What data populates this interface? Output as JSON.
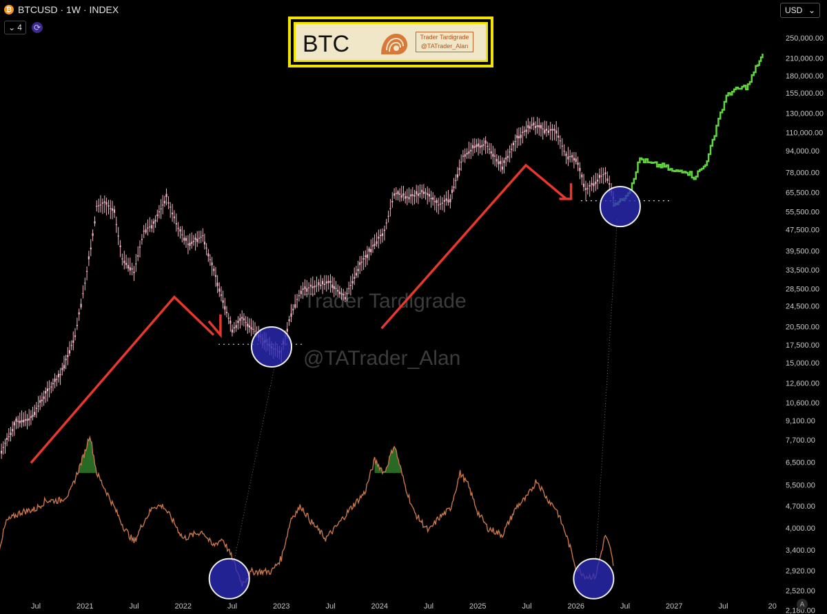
{
  "header": {
    "symbol_icon": "bitcoin-icon",
    "symbol_title": "BTCUSD · 1W · INDEX",
    "indicator_count": "4",
    "sync_icon": "sync-icon"
  },
  "currency_selector": {
    "label": "USD",
    "icon": "chevron-down-icon"
  },
  "logo": {
    "title": "BTC",
    "tag_line1": "Trader Tardigrade",
    "tag_line2": "@TATrader_Alan"
  },
  "watermark": {
    "line1": "Trader Tardigrade",
    "line2": "@TATrader_Alan"
  },
  "auto_scale_label": "A",
  "chart_data": {
    "type": "line",
    "x_ticks": [
      {
        "t": 2020.5,
        "label": "Jul"
      },
      {
        "t": 2021,
        "label": "2021"
      },
      {
        "t": 2021.5,
        "label": "Jul"
      },
      {
        "t": 2022,
        "label": "2022"
      },
      {
        "t": 2022.5,
        "label": "Jul"
      },
      {
        "t": 2023,
        "label": "2023"
      },
      {
        "t": 2023.5,
        "label": "Jul"
      },
      {
        "t": 2024,
        "label": "2024"
      },
      {
        "t": 2024.5,
        "label": "Jul"
      },
      {
        "t": 2025,
        "label": "2025"
      },
      {
        "t": 2025.5,
        "label": "Jul"
      },
      {
        "t": 2026,
        "label": "2026"
      },
      {
        "t": 2026.5,
        "label": "Jul"
      },
      {
        "t": 2027,
        "label": "2027"
      },
      {
        "t": 2027.5,
        "label": "Jul"
      },
      {
        "t": 2028,
        "label": "20"
      }
    ],
    "y_scale": "log",
    "y_ticks": [
      250000,
      210000,
      180000,
      155000,
      130000,
      110000,
      94000,
      78000,
      65500,
      55500,
      47500,
      39500,
      33500,
      28500,
      24500,
      20500,
      17500,
      15000,
      12600,
      10600,
      9100,
      7700,
      6500,
      5500,
      4700,
      4000,
      3400,
      2920,
      2520,
      2180
    ],
    "y_tick_labels": [
      "250,000.00",
      "210,000.00",
      "180,000.00",
      "155,000.00",
      "130,000.00",
      "110,000.00",
      "94,000.00",
      "78,000.00",
      "65,500.00",
      "55,500.00",
      "47,500.00",
      "39,500.00",
      "33,500.00",
      "28,500.00",
      "24,500.00",
      "20,500.00",
      "17,500.00",
      "15,000.00",
      "12,600.00",
      "10,600.00",
      "9,100.00",
      "7,700.00",
      "6,500.00",
      "5,500.00",
      "4,700.00",
      "4,000.00",
      "3,400.00",
      "2,920.00",
      "2,520.00",
      "2,180.00"
    ],
    "series": [
      {
        "kind": "price",
        "color": "#f3b6c6",
        "points": [
          [
            2020.15,
            7000
          ],
          [
            2020.3,
            9000
          ],
          [
            2020.45,
            9300
          ],
          [
            2020.6,
            11500
          ],
          [
            2020.75,
            13500
          ],
          [
            2020.9,
            19000
          ],
          [
            2021.0,
            30000
          ],
          [
            2021.08,
            45000
          ],
          [
            2021.12,
            58000
          ],
          [
            2021.2,
            60000
          ],
          [
            2021.3,
            55000
          ],
          [
            2021.38,
            37000
          ],
          [
            2021.5,
            33000
          ],
          [
            2021.6,
            47000
          ],
          [
            2021.7,
            50000
          ],
          [
            2021.83,
            63000
          ],
          [
            2021.95,
            48000
          ],
          [
            2022.05,
            42000
          ],
          [
            2022.2,
            45000
          ],
          [
            2022.35,
            30000
          ],
          [
            2022.5,
            20000
          ],
          [
            2022.6,
            22000
          ],
          [
            2022.75,
            19500
          ],
          [
            2022.9,
            17000
          ],
          [
            2023.0,
            16500
          ],
          [
            2023.1,
            23000
          ],
          [
            2023.2,
            28000
          ],
          [
            2023.3,
            29000
          ],
          [
            2023.5,
            30000
          ],
          [
            2023.65,
            26500
          ],
          [
            2023.8,
            35000
          ],
          [
            2023.95,
            42000
          ],
          [
            2024.05,
            47000
          ],
          [
            2024.15,
            65000
          ],
          [
            2024.3,
            63000
          ],
          [
            2024.45,
            66000
          ],
          [
            2024.6,
            59000
          ],
          [
            2024.72,
            62000
          ],
          [
            2024.85,
            90000
          ],
          [
            2024.95,
            96000
          ],
          [
            2025.08,
            100000
          ],
          [
            2025.25,
            82000
          ],
          [
            2025.4,
            105000
          ],
          [
            2025.55,
            118000
          ],
          [
            2025.7,
            112000
          ],
          [
            2025.8,
            112000
          ],
          [
            2025.9,
            90000
          ],
          [
            2026.0,
            88000
          ],
          [
            2026.1,
            67000
          ],
          [
            2026.2,
            72000
          ],
          [
            2026.3,
            78000
          ],
          [
            2026.38,
            63000
          ]
        ]
      },
      {
        "kind": "projection",
        "color": "#5fd63b",
        "points": [
          [
            2026.38,
            60000
          ],
          [
            2026.45,
            60500
          ],
          [
            2026.55,
            68000
          ],
          [
            2026.65,
            88000
          ],
          [
            2026.75,
            84000
          ],
          [
            2026.9,
            82000
          ],
          [
            2027.0,
            78000
          ],
          [
            2027.1,
            80000
          ],
          [
            2027.2,
            75000
          ],
          [
            2027.3,
            82000
          ],
          [
            2027.35,
            90000
          ],
          [
            2027.45,
            125000
          ],
          [
            2027.55,
            155000
          ],
          [
            2027.65,
            160000
          ],
          [
            2027.75,
            165000
          ],
          [
            2027.85,
            200000
          ],
          [
            2027.9,
            215000
          ]
        ]
      },
      {
        "kind": "oscillator",
        "color": "#c8764a",
        "points": [
          [
            2020.0,
            3900
          ],
          [
            2020.1,
            3200
          ],
          [
            2020.2,
            4200
          ],
          [
            2020.35,
            4500
          ],
          [
            2020.5,
            4600
          ],
          [
            2020.6,
            4900
          ],
          [
            2020.75,
            4900
          ],
          [
            2020.85,
            5200
          ],
          [
            2021.0,
            7000
          ],
          [
            2021.05,
            8000
          ],
          [
            2021.12,
            6000
          ],
          [
            2021.25,
            5000
          ],
          [
            2021.4,
            4000
          ],
          [
            2021.5,
            3600
          ],
          [
            2021.6,
            4200
          ],
          [
            2021.7,
            4700
          ],
          [
            2021.8,
            4700
          ],
          [
            2021.9,
            4200
          ],
          [
            2022.0,
            3700
          ],
          [
            2022.1,
            3800
          ],
          [
            2022.2,
            3900
          ],
          [
            2022.3,
            3500
          ],
          [
            2022.4,
            3700
          ],
          [
            2022.5,
            3200
          ],
          [
            2022.6,
            2650
          ],
          [
            2022.7,
            2900
          ],
          [
            2022.8,
            2900
          ],
          [
            2022.9,
            2900
          ],
          [
            2023.0,
            3200
          ],
          [
            2023.1,
            4300
          ],
          [
            2023.2,
            4700
          ],
          [
            2023.3,
            4200
          ],
          [
            2023.45,
            3700
          ],
          [
            2023.55,
            4000
          ],
          [
            2023.7,
            4600
          ],
          [
            2023.85,
            5200
          ],
          [
            2023.95,
            6600
          ],
          [
            2024.05,
            6000
          ],
          [
            2024.15,
            7400
          ],
          [
            2024.25,
            5600
          ],
          [
            2024.35,
            4500
          ],
          [
            2024.5,
            3900
          ],
          [
            2024.6,
            4300
          ],
          [
            2024.72,
            4600
          ],
          [
            2024.82,
            6000
          ],
          [
            2024.9,
            5500
          ],
          [
            2025.0,
            4500
          ],
          [
            2025.1,
            4000
          ],
          [
            2025.25,
            3800
          ],
          [
            2025.4,
            4700
          ],
          [
            2025.5,
            5000
          ],
          [
            2025.6,
            5700
          ],
          [
            2025.7,
            5000
          ],
          [
            2025.8,
            4600
          ],
          [
            2025.9,
            3800
          ],
          [
            2026.0,
            3000
          ],
          [
            2026.1,
            2800
          ],
          [
            2026.2,
            2800
          ],
          [
            2026.3,
            3800
          ],
          [
            2026.35,
            3400
          ],
          [
            2026.38,
            3050
          ]
        ]
      }
    ]
  }
}
